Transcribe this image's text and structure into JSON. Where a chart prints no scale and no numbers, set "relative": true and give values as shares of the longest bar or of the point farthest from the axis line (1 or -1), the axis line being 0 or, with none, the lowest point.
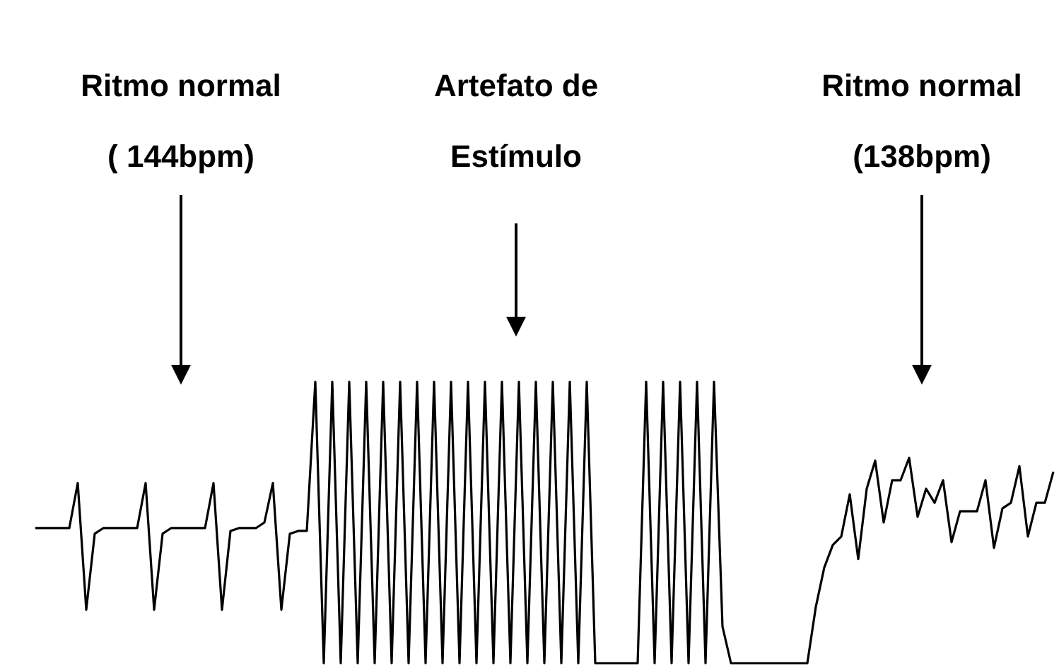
{
  "chart_data": {
    "type": "line",
    "relative": true,
    "categories": [
      null,
      null,
      null,
      null,
      null,
      null,
      null,
      null,
      null,
      null,
      null,
      null,
      null,
      null,
      null,
      null,
      null,
      null,
      null,
      null,
      null,
      null,
      null,
      null,
      null,
      null,
      null,
      null,
      null,
      null,
      null,
      null,
      null,
      null,
      null,
      null,
      null,
      null,
      null,
      null,
      null,
      null,
      null,
      null,
      null,
      null,
      null,
      null,
      null,
      null,
      null,
      null,
      null,
      null,
      null,
      null,
      null,
      null,
      null,
      null,
      null,
      null,
      null,
      null,
      null,
      null,
      null,
      null,
      null,
      null,
      null,
      null,
      null,
      null,
      null,
      null,
      null,
      null,
      null,
      null,
      null,
      null,
      null,
      null,
      null,
      null,
      null,
      null,
      null,
      null,
      null,
      null,
      null,
      null,
      null,
      null,
      null,
      null,
      null,
      null,
      null,
      null,
      null,
      null,
      null,
      null,
      null,
      null,
      null,
      null,
      null,
      null,
      null,
      null,
      null,
      null,
      null,
      null,
      null,
      null,
      null
    ],
    "series": [
      {
        "color": "#000000",
        "values": [
          0.48,
          0.48,
          0.48,
          0.48,
          0.48,
          0.64,
          0.19,
          0.46,
          0.48,
          0.48,
          0.48,
          0.48,
          0.48,
          0.64,
          0.19,
          0.46,
          0.48,
          0.48,
          0.48,
          0.48,
          0.48,
          0.64,
          0.19,
          0.47,
          0.48,
          0.48,
          0.48,
          0.5,
          0.64,
          0.19,
          0.46,
          0.47,
          0.47,
          1,
          0,
          1,
          0,
          1,
          0,
          1,
          0,
          1,
          0,
          1,
          0,
          1,
          0,
          1,
          0,
          1,
          0,
          1,
          0,
          1,
          0,
          1,
          0,
          1,
          0,
          1,
          0,
          1,
          0,
          1,
          0,
          1,
          0,
          0,
          0,
          0,
          0,
          0,
          1,
          0,
          1,
          0,
          1,
          0,
          1,
          0,
          1,
          0.13,
          0,
          0,
          0,
          0,
          0,
          0,
          0,
          0,
          0,
          0,
          0.2,
          0.34,
          0.42,
          0.45,
          0.6,
          0.37,
          0.62,
          0.72,
          0.5,
          0.65,
          0.65,
          0.73,
          0.52,
          0.62,
          0.57,
          0.65,
          0.43,
          0.54,
          0.54,
          0.54,
          0.65,
          0.41,
          0.55,
          0.57,
          0.7,
          0.45,
          0.57,
          0.57,
          0.68
        ]
      }
    ],
    "annotations": [
      "Ritmo normal\n( 144bpm)",
      "Artefato de\nEstímulo",
      "Ritmo normal\n(138bpm)"
    ]
  }
}
